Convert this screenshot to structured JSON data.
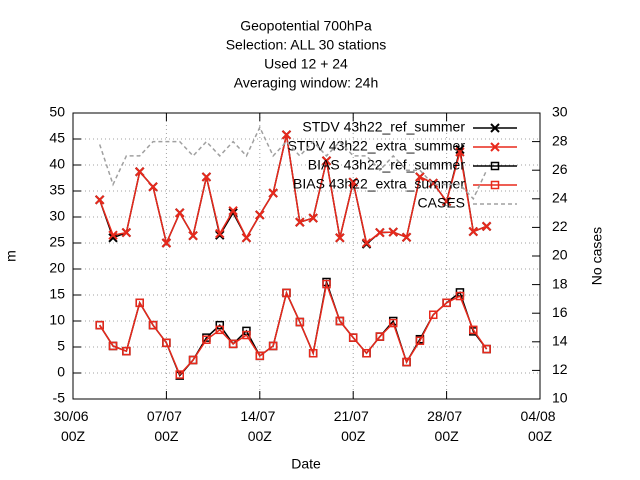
{
  "chart_data": {
    "type": "line",
    "title": [
      "Geopotential 700hPa",
      "Selection: ALL     30 stations",
      "Used  12  + 24",
      "Averaging window: 24h"
    ],
    "xlabel": "Date",
    "ylabel": "m",
    "y2label": "No cases",
    "x": [
      "02/07 00Z",
      "03/07 00Z",
      "04/07 00Z",
      "05/07 00Z",
      "06/07 00Z",
      "07/07 00Z",
      "08/07 00Z",
      "09/07 00Z",
      "10/07 00Z",
      "11/07 00Z",
      "12/07 00Z",
      "13/07 00Z",
      "14/07 00Z",
      "15/07 00Z",
      "16/07 00Z",
      "17/07 00Z",
      "18/07 00Z",
      "19/07 00Z",
      "20/07 00Z",
      "21/07 00Z",
      "22/07 00Z",
      "23/07 00Z",
      "24/07 00Z",
      "25/07 00Z",
      "26/07 00Z",
      "27/07 00Z",
      "28/07 00Z",
      "29/07 00Z",
      "30/07 00Z",
      "31/07 00Z"
    ],
    "xlim": [
      "30/06 00Z",
      "04/08 00Z"
    ],
    "xticks": [
      "30/06 00Z",
      "07/07 00Z",
      "14/07 00Z",
      "21/07 00Z",
      "28/07 00Z",
      "04/08 00Z"
    ],
    "ylim": [
      -5,
      50
    ],
    "yticks": [
      -5,
      0,
      5,
      10,
      15,
      20,
      25,
      30,
      35,
      40,
      45,
      50
    ],
    "y2lim": [
      10,
      30
    ],
    "y2ticks": [
      10,
      12,
      14,
      16,
      18,
      20,
      22,
      24,
      26,
      28,
      30
    ],
    "grid": true,
    "legend": "top right",
    "series": [
      {
        "name": "STDV 43h22_ref_summer",
        "color": "#000000",
        "marker": "x",
        "values": [
          33.3,
          26,
          27,
          38.7,
          35.8,
          25,
          30.8,
          26.4,
          37.7,
          26.5,
          30.8,
          26,
          30.4,
          34.6,
          45.8,
          29,
          29.8,
          40.8,
          26,
          36.7,
          24.8,
          27,
          27.1,
          26.1,
          37.7,
          36.5,
          33,
          43,
          27.2,
          28.2
        ]
      },
      {
        "name": "STDV 43h22_extra_summer",
        "color": "#e8291c",
        "marker": "x",
        "values": [
          33.3,
          26.5,
          27,
          38.7,
          35.8,
          25,
          30.8,
          26.4,
          37.7,
          26.8,
          31.2,
          26,
          30.4,
          34.6,
          45.8,
          29,
          29.8,
          40.8,
          26,
          36.7,
          25,
          27,
          27.1,
          26.1,
          37.7,
          36.5,
          33,
          42.5,
          27.2,
          28.2
        ]
      },
      {
        "name": "BIAS 43h22_ref_summer",
        "color": "#000000",
        "marker": "square",
        "values": [
          9.2,
          5.2,
          4.2,
          13.5,
          9.2,
          5.8,
          -0.5,
          2.5,
          6.8,
          9.2,
          5.6,
          8.1,
          3.3,
          5.2,
          15.4,
          9.8,
          3.8,
          17.5,
          10,
          6.8,
          3.8,
          7,
          10,
          2.1,
          6.5,
          11.2,
          13.5,
          15.5,
          8,
          4.6
        ]
      },
      {
        "name": "BIAS 43h22_extra_summer",
        "color": "#e8291c",
        "marker": "square",
        "values": [
          9.2,
          5.2,
          4.2,
          13.5,
          9.2,
          5.8,
          -0.3,
          2.5,
          6.4,
          8.3,
          5.6,
          7.3,
          3.3,
          5.2,
          15.4,
          9.8,
          3.8,
          17.1,
          10,
          6.8,
          3.8,
          7,
          9.6,
          2.1,
          6.2,
          11.2,
          13.5,
          14.8,
          8.3,
          4.6
        ]
      },
      {
        "name": "CASES",
        "color": "#a0a0a0",
        "axis": "y2",
        "dash": true,
        "values": [
          27.8,
          25,
          27,
          27,
          28,
          28,
          28,
          27,
          28,
          27,
          28,
          27,
          29,
          27,
          28,
          27,
          28,
          27,
          28,
          27,
          27,
          26,
          27,
          26,
          26,
          25,
          25,
          25,
          24,
          26
        ]
      }
    ]
  }
}
